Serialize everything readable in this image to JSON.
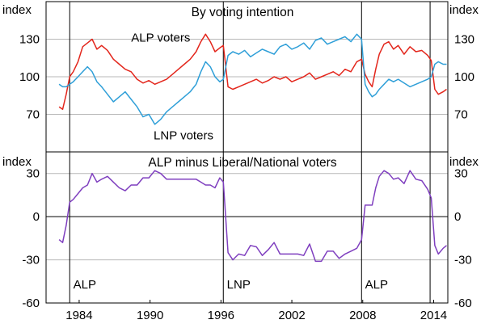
{
  "chart_data": [
    {
      "type": "line",
      "title": "By voting intention",
      "ylabel_left": "index",
      "ylabel_right": "index",
      "ylim": [
        40,
        160
      ],
      "yticks": [
        70,
        100,
        130
      ],
      "xlim": [
        1981.2,
        2015.2
      ],
      "xticks": [
        "1984",
        "1990",
        "1996",
        "2002",
        "2008",
        "2014"
      ],
      "xtick_values": [
        1984,
        1990,
        1996,
        2002,
        2008,
        2014
      ],
      "vertical_lines": [
        1983.2,
        1996.2,
        2007.9,
        2013.7
      ],
      "grid": true,
      "series": [
        {
          "name": "ALP voters",
          "color": "#e3261c",
          "points": [
            [
              1982.3,
              76
            ],
            [
              1982.6,
              74
            ],
            [
              1982.9,
              86
            ],
            [
              1983.2,
              100
            ],
            [
              1983.5,
              104
            ],
            [
              1983.9,
              112
            ],
            [
              1984.3,
              124
            ],
            [
              1984.7,
              127
            ],
            [
              1985.1,
              130
            ],
            [
              1985.5,
              122
            ],
            [
              1985.9,
              125
            ],
            [
              1986.4,
              121
            ],
            [
              1986.9,
              114
            ],
            [
              1987.4,
              110
            ],
            [
              1987.9,
              106
            ],
            [
              1988.4,
              104
            ],
            [
              1988.9,
              98
            ],
            [
              1989.4,
              95
            ],
            [
              1989.9,
              97
            ],
            [
              1990.4,
              94
            ],
            [
              1990.9,
              96
            ],
            [
              1991.4,
              98
            ],
            [
              1991.9,
              102
            ],
            [
              1992.4,
              106
            ],
            [
              1992.9,
              110
            ],
            [
              1993.4,
              114
            ],
            [
              1993.9,
              120
            ],
            [
              1994.3,
              128
            ],
            [
              1994.7,
              134
            ],
            [
              1995.1,
              128
            ],
            [
              1995.5,
              120
            ],
            [
              1995.9,
              123
            ],
            [
              1996.2,
              125
            ],
            [
              1996.6,
              92
            ],
            [
              1997.0,
              90
            ],
            [
              1997.5,
              92
            ],
            [
              1998.0,
              94
            ],
            [
              1998.5,
              96
            ],
            [
              1999.0,
              98
            ],
            [
              1999.5,
              95
            ],
            [
              2000.0,
              97
            ],
            [
              2000.5,
              100
            ],
            [
              2001.0,
              98
            ],
            [
              2001.5,
              100
            ],
            [
              2002.0,
              96
            ],
            [
              2002.5,
              98
            ],
            [
              2003.0,
              100
            ],
            [
              2003.5,
              103
            ],
            [
              2004.0,
              98
            ],
            [
              2004.5,
              100
            ],
            [
              2005.0,
              102
            ],
            [
              2005.5,
              104
            ],
            [
              2006.0,
              101
            ],
            [
              2006.5,
              106
            ],
            [
              2007.0,
              104
            ],
            [
              2007.5,
              112
            ],
            [
              2007.9,
              114
            ],
            [
              2008.2,
              102
            ],
            [
              2008.5,
              96
            ],
            [
              2008.8,
              92
            ],
            [
              2009.1,
              106
            ],
            [
              2009.4,
              118
            ],
            [
              2009.8,
              126
            ],
            [
              2010.2,
              128
            ],
            [
              2010.6,
              122
            ],
            [
              2011.0,
              125
            ],
            [
              2011.5,
              118
            ],
            [
              2012.0,
              124
            ],
            [
              2012.5,
              120
            ],
            [
              2013.0,
              121
            ],
            [
              2013.5,
              117
            ],
            [
              2013.8,
              113
            ],
            [
              2014.1,
              90
            ],
            [
              2014.4,
              86
            ],
            [
              2014.8,
              88
            ],
            [
              2015.1,
              90
            ]
          ]
        },
        {
          "name": "LNP voters",
          "color": "#2f9fd8",
          "points": [
            [
              1982.3,
              94
            ],
            [
              1982.6,
              92
            ],
            [
              1982.9,
              92
            ],
            [
              1983.2,
              94
            ],
            [
              1983.5,
              96
            ],
            [
              1983.9,
              100
            ],
            [
              1984.3,
              104
            ],
            [
              1984.7,
              108
            ],
            [
              1985.1,
              104
            ],
            [
              1985.5,
              96
            ],
            [
              1985.9,
              92
            ],
            [
              1986.4,
              86
            ],
            [
              1986.9,
              80
            ],
            [
              1987.4,
              84
            ],
            [
              1987.9,
              88
            ],
            [
              1988.4,
              82
            ],
            [
              1988.9,
              76
            ],
            [
              1989.4,
              68
            ],
            [
              1989.9,
              70
            ],
            [
              1990.4,
              62
            ],
            [
              1990.9,
              66
            ],
            [
              1991.4,
              72
            ],
            [
              1991.9,
              76
            ],
            [
              1992.4,
              80
            ],
            [
              1992.9,
              84
            ],
            [
              1993.4,
              88
            ],
            [
              1993.9,
              94
            ],
            [
              1994.3,
              104
            ],
            [
              1994.7,
              112
            ],
            [
              1995.1,
              108
            ],
            [
              1995.5,
              100
            ],
            [
              1995.9,
              96
            ],
            [
              1996.2,
              98
            ],
            [
              1996.6,
              117
            ],
            [
              1997.0,
              120
            ],
            [
              1997.5,
              118
            ],
            [
              1998.0,
              121
            ],
            [
              1998.5,
              116
            ],
            [
              1999.0,
              119
            ],
            [
              1999.5,
              122
            ],
            [
              2000.0,
              120
            ],
            [
              2000.5,
              118
            ],
            [
              2001.0,
              124
            ],
            [
              2001.5,
              126
            ],
            [
              2002.0,
              122
            ],
            [
              2002.5,
              124
            ],
            [
              2003.0,
              127
            ],
            [
              2003.5,
              122
            ],
            [
              2004.0,
              129
            ],
            [
              2004.5,
              131
            ],
            [
              2005.0,
              126
            ],
            [
              2005.5,
              128
            ],
            [
              2006.0,
              130
            ],
            [
              2006.5,
              132
            ],
            [
              2007.0,
              128
            ],
            [
              2007.5,
              134
            ],
            [
              2007.9,
              130
            ],
            [
              2008.2,
              94
            ],
            [
              2008.5,
              88
            ],
            [
              2008.8,
              84
            ],
            [
              2009.1,
              86
            ],
            [
              2009.4,
              90
            ],
            [
              2009.8,
              94
            ],
            [
              2010.2,
              98
            ],
            [
              2010.6,
              96
            ],
            [
              2011.0,
              98
            ],
            [
              2011.5,
              95
            ],
            [
              2012.0,
              92
            ],
            [
              2012.5,
              94
            ],
            [
              2013.0,
              96
            ],
            [
              2013.5,
              98
            ],
            [
              2013.8,
              100
            ],
            [
              2014.1,
              110
            ],
            [
              2014.4,
              112
            ],
            [
              2014.8,
              110
            ],
            [
              2015.1,
              110
            ]
          ]
        }
      ],
      "labels": [
        {
          "text": "ALP voters",
          "color": "#e3261c",
          "at": [
            1988.4,
            128
          ]
        },
        {
          "text": "LNP voters",
          "color": "#2f9fd8",
          "at": [
            1990.3,
            50
          ]
        }
      ]
    },
    {
      "type": "line",
      "title": "ALP minus Liberal/National voters",
      "ylabel_left": "index",
      "ylabel_right": "index",
      "ylim": [
        -60,
        45
      ],
      "yticks": [
        -60,
        -30,
        0,
        30
      ],
      "xlim": [
        1981.2,
        2015.2
      ],
      "xticks": [
        "1984",
        "1990",
        "1996",
        "2002",
        "2008",
        "2014"
      ],
      "xtick_values": [
        1984,
        1990,
        1996,
        2002,
        2008,
        2014
      ],
      "vertical_lines": [
        1983.2,
        1996.2,
        2007.9,
        2013.7
      ],
      "grid": true,
      "series": [
        {
          "name": "ALP minus Liberal/National voters",
          "color": "#7f3fbf",
          "points": [
            [
              1982.3,
              -16
            ],
            [
              1982.6,
              -18
            ],
            [
              1982.9,
              -6
            ],
            [
              1983.2,
              10
            ],
            [
              1983.5,
              12
            ],
            [
              1983.9,
              16
            ],
            [
              1984.3,
              20
            ],
            [
              1984.7,
              22
            ],
            [
              1985.1,
              30
            ],
            [
              1985.5,
              24
            ],
            [
              1985.9,
              26
            ],
            [
              1986.4,
              28
            ],
            [
              1986.9,
              24
            ],
            [
              1987.4,
              20
            ],
            [
              1987.9,
              18
            ],
            [
              1988.4,
              22
            ],
            [
              1988.9,
              22
            ],
            [
              1989.4,
              27
            ],
            [
              1989.9,
              27
            ],
            [
              1990.4,
              32
            ],
            [
              1990.9,
              30
            ],
            [
              1991.4,
              26
            ],
            [
              1991.9,
              26
            ],
            [
              1992.4,
              26
            ],
            [
              1992.9,
              26
            ],
            [
              1993.4,
              26
            ],
            [
              1993.9,
              26
            ],
            [
              1994.3,
              24
            ],
            [
              1994.7,
              22
            ],
            [
              1995.1,
              22
            ],
            [
              1995.5,
              20
            ],
            [
              1995.9,
              27
            ],
            [
              1996.2,
              24
            ],
            [
              1996.6,
              -25
            ],
            [
              1997.0,
              -30
            ],
            [
              1997.5,
              -26
            ],
            [
              1998.0,
              -27
            ],
            [
              1998.5,
              -20
            ],
            [
              1999.0,
              -21
            ],
            [
              1999.5,
              -27
            ],
            [
              2000.0,
              -23
            ],
            [
              2000.5,
              -18
            ],
            [
              2001.0,
              -26
            ],
            [
              2001.5,
              -26
            ],
            [
              2002.0,
              -26
            ],
            [
              2002.5,
              -26
            ],
            [
              2003.0,
              -27
            ],
            [
              2003.5,
              -19
            ],
            [
              2004.0,
              -31
            ],
            [
              2004.5,
              -31
            ],
            [
              2005.0,
              -24
            ],
            [
              2005.5,
              -24
            ],
            [
              2006.0,
              -29
            ],
            [
              2006.5,
              -26
            ],
            [
              2007.0,
              -24
            ],
            [
              2007.5,
              -22
            ],
            [
              2007.9,
              -16
            ],
            [
              2008.2,
              8
            ],
            [
              2008.5,
              8
            ],
            [
              2008.8,
              8
            ],
            [
              2009.1,
              20
            ],
            [
              2009.4,
              28
            ],
            [
              2009.8,
              32
            ],
            [
              2010.2,
              30
            ],
            [
              2010.6,
              26
            ],
            [
              2011.0,
              27
            ],
            [
              2011.5,
              23
            ],
            [
              2012.0,
              32
            ],
            [
              2012.5,
              26
            ],
            [
              2013.0,
              25
            ],
            [
              2013.5,
              19
            ],
            [
              2013.8,
              13
            ],
            [
              2014.1,
              -20
            ],
            [
              2014.4,
              -26
            ],
            [
              2014.8,
              -22
            ],
            [
              2015.1,
              -20
            ]
          ]
        }
      ],
      "labels": [
        {
          "text": "ALP",
          "at": [
            1983.5,
            -50
          ]
        },
        {
          "text": "LNP",
          "at": [
            1996.5,
            -50
          ]
        },
        {
          "text": "ALP",
          "at": [
            2008.2,
            -50
          ]
        }
      ]
    }
  ]
}
